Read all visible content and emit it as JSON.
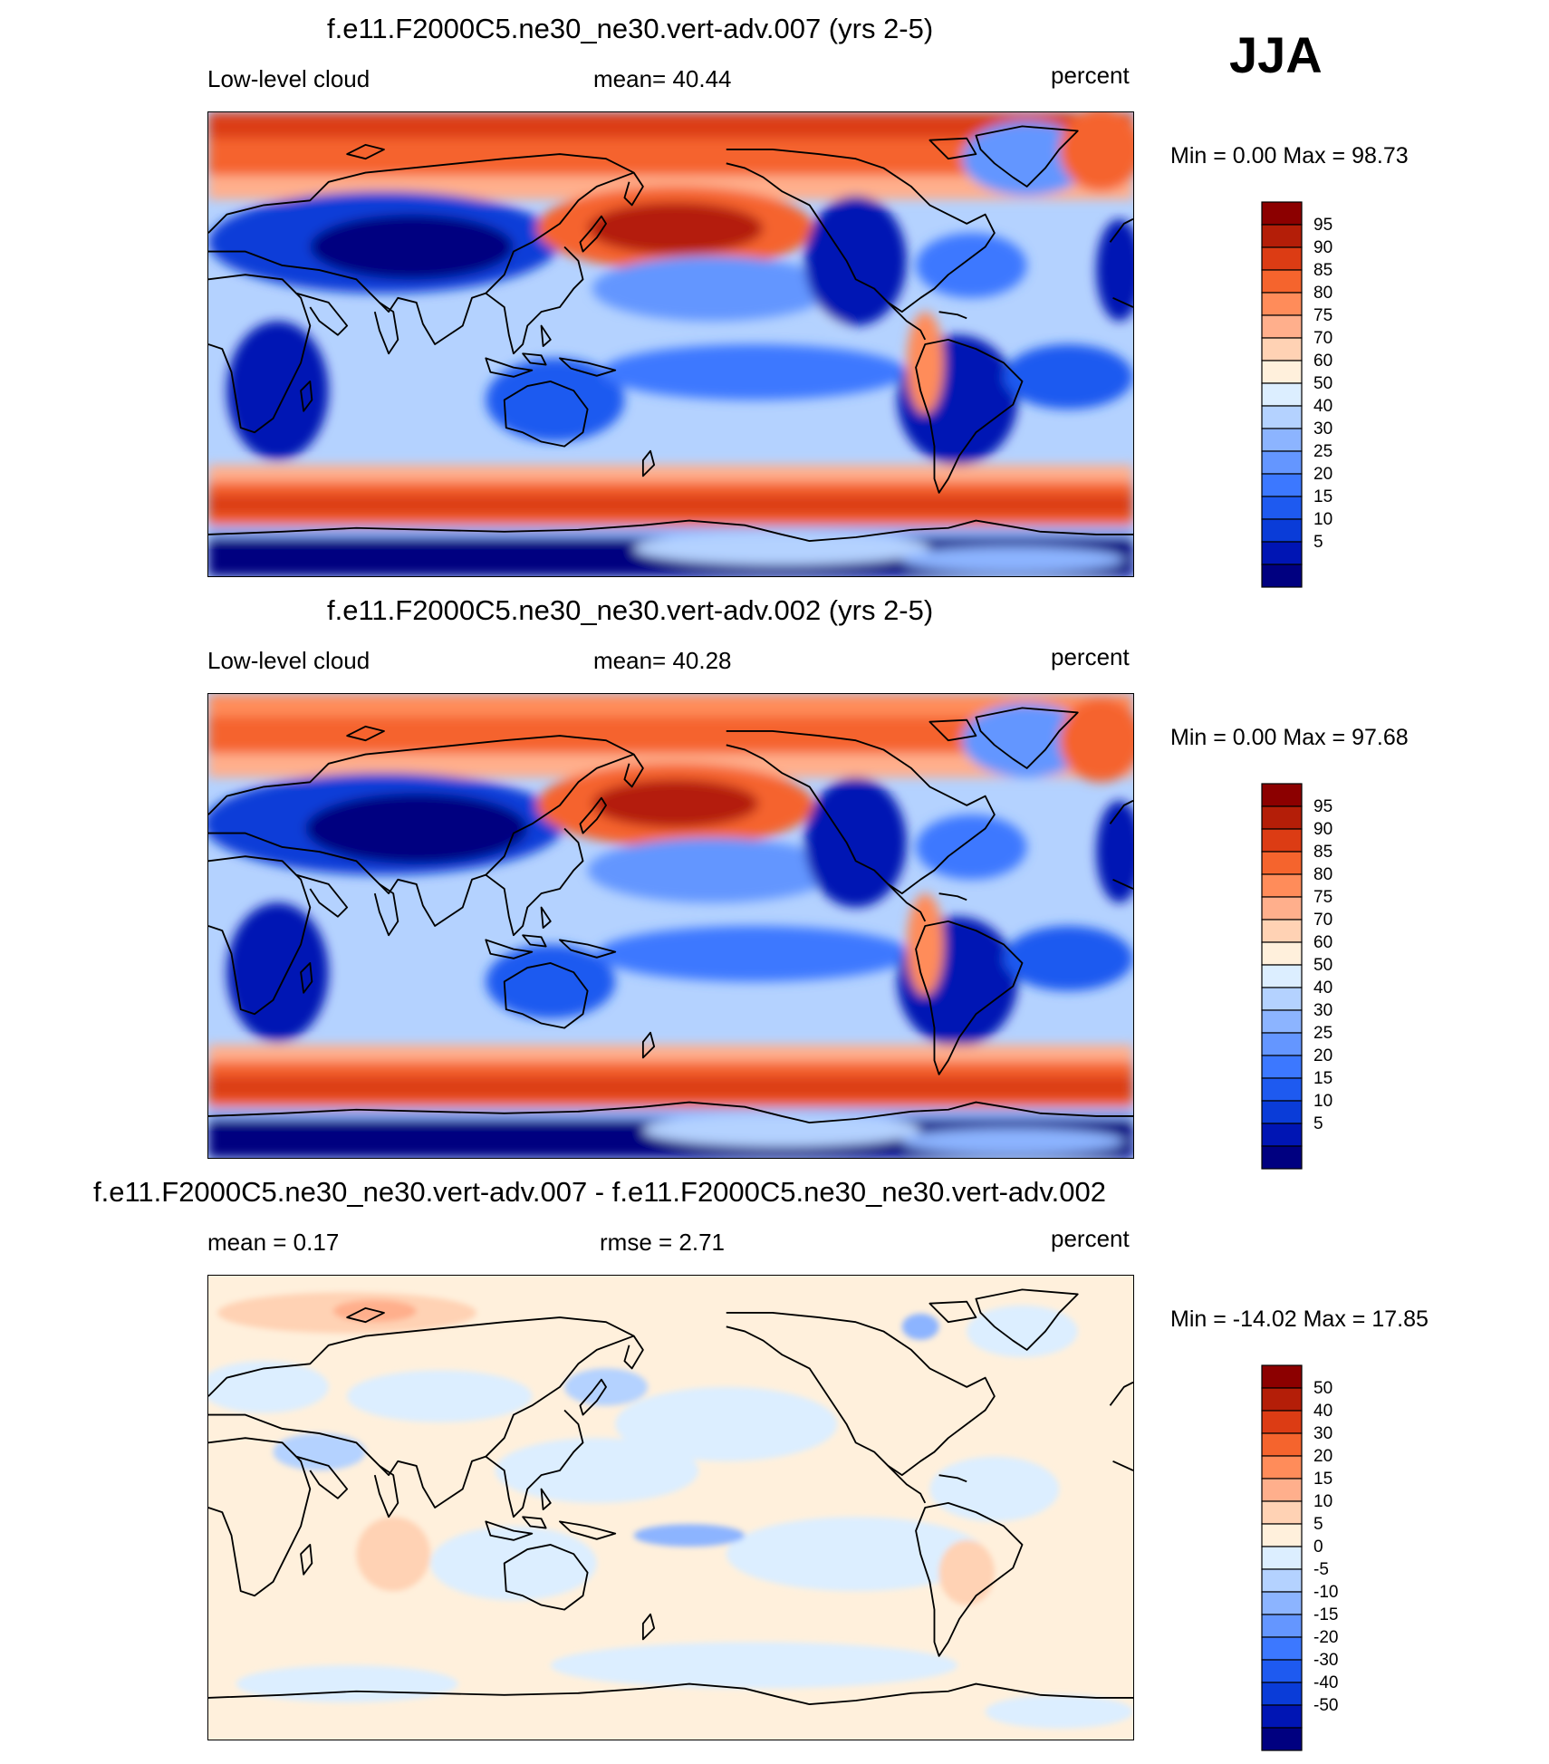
{
  "season": "JJA",
  "palette": [
    "#000080",
    "#0015b4",
    "#0a3cd8",
    "#1e5af0",
    "#3c78ff",
    "#6496ff",
    "#8cb4ff",
    "#b4d2ff",
    "#dceeff",
    "#fff0dc",
    "#ffd2b4",
    "#ffaf8c",
    "#ff8c5a",
    "#f5642d",
    "#dc3c14",
    "#b41e08",
    "#8c0000"
  ],
  "panels": [
    {
      "title": "f.e11.F2000C5.ne30_ne30.vert-adv.007 (yrs 2-5)",
      "left_label": "Low-level cloud",
      "center_label": "mean=  40.44",
      "right_label": "percent",
      "minmax": "Min =    0.00 Max =  98.73",
      "colorbar_labels": [
        "95",
        "90",
        "85",
        "80",
        "75",
        "70",
        "60",
        "50",
        "40",
        "30",
        "25",
        "20",
        "15",
        "10",
        "5"
      ]
    },
    {
      "title": "f.e11.F2000C5.ne30_ne30.vert-adv.002 (yrs 2-5)",
      "left_label": "Low-level cloud",
      "center_label": "mean=  40.28",
      "right_label": "percent",
      "minmax": "Min =    0.00 Max =  97.68",
      "colorbar_labels": [
        "95",
        "90",
        "85",
        "80",
        "75",
        "70",
        "60",
        "50",
        "40",
        "30",
        "25",
        "20",
        "15",
        "10",
        "5"
      ]
    },
    {
      "title": "f.e11.F2000C5.ne30_ne30.vert-adv.007 - f.e11.F2000C5.ne30_ne30.vert-adv.002",
      "left_label": "mean =   0.17",
      "center_label": "rmse =   2.71",
      "right_label": "percent",
      "minmax": "Min = -14.02 Max =  17.85",
      "colorbar_labels": [
        "50",
        "40",
        "30",
        "20",
        "15",
        "10",
        "5",
        "0",
        "-5",
        "-10",
        "-15",
        "-20",
        "-30",
        "-40",
        "-50"
      ]
    }
  ],
  "chart_data": [
    {
      "type": "heatmap",
      "title": "f.e11.F2000C5.ne30_ne30.vert-adv.007 (yrs 2-5)",
      "variable": "Low-level cloud",
      "units": "percent",
      "mean": 40.44,
      "min": 0.0,
      "max": 98.73,
      "contour_levels": [
        5,
        10,
        15,
        20,
        25,
        30,
        40,
        50,
        60,
        70,
        75,
        80,
        85,
        90,
        95
      ]
    },
    {
      "type": "heatmap",
      "title": "f.e11.F2000C5.ne30_ne30.vert-adv.002 (yrs 2-5)",
      "variable": "Low-level cloud",
      "units": "percent",
      "mean": 40.28,
      "min": 0.0,
      "max": 97.68,
      "contour_levels": [
        5,
        10,
        15,
        20,
        25,
        30,
        40,
        50,
        60,
        70,
        75,
        80,
        85,
        90,
        95
      ]
    },
    {
      "type": "heatmap",
      "title": "f.e11.F2000C5.ne30_ne30.vert-adv.007 - f.e11.F2000C5.ne30_ne30.vert-adv.002",
      "units": "percent",
      "mean": 0.17,
      "rmse": 2.71,
      "min": -14.02,
      "max": 17.85,
      "contour_levels": [
        -50,
        -40,
        -30,
        -20,
        -15,
        -10,
        -5,
        0,
        5,
        10,
        15,
        20,
        30,
        40,
        50
      ]
    }
  ]
}
